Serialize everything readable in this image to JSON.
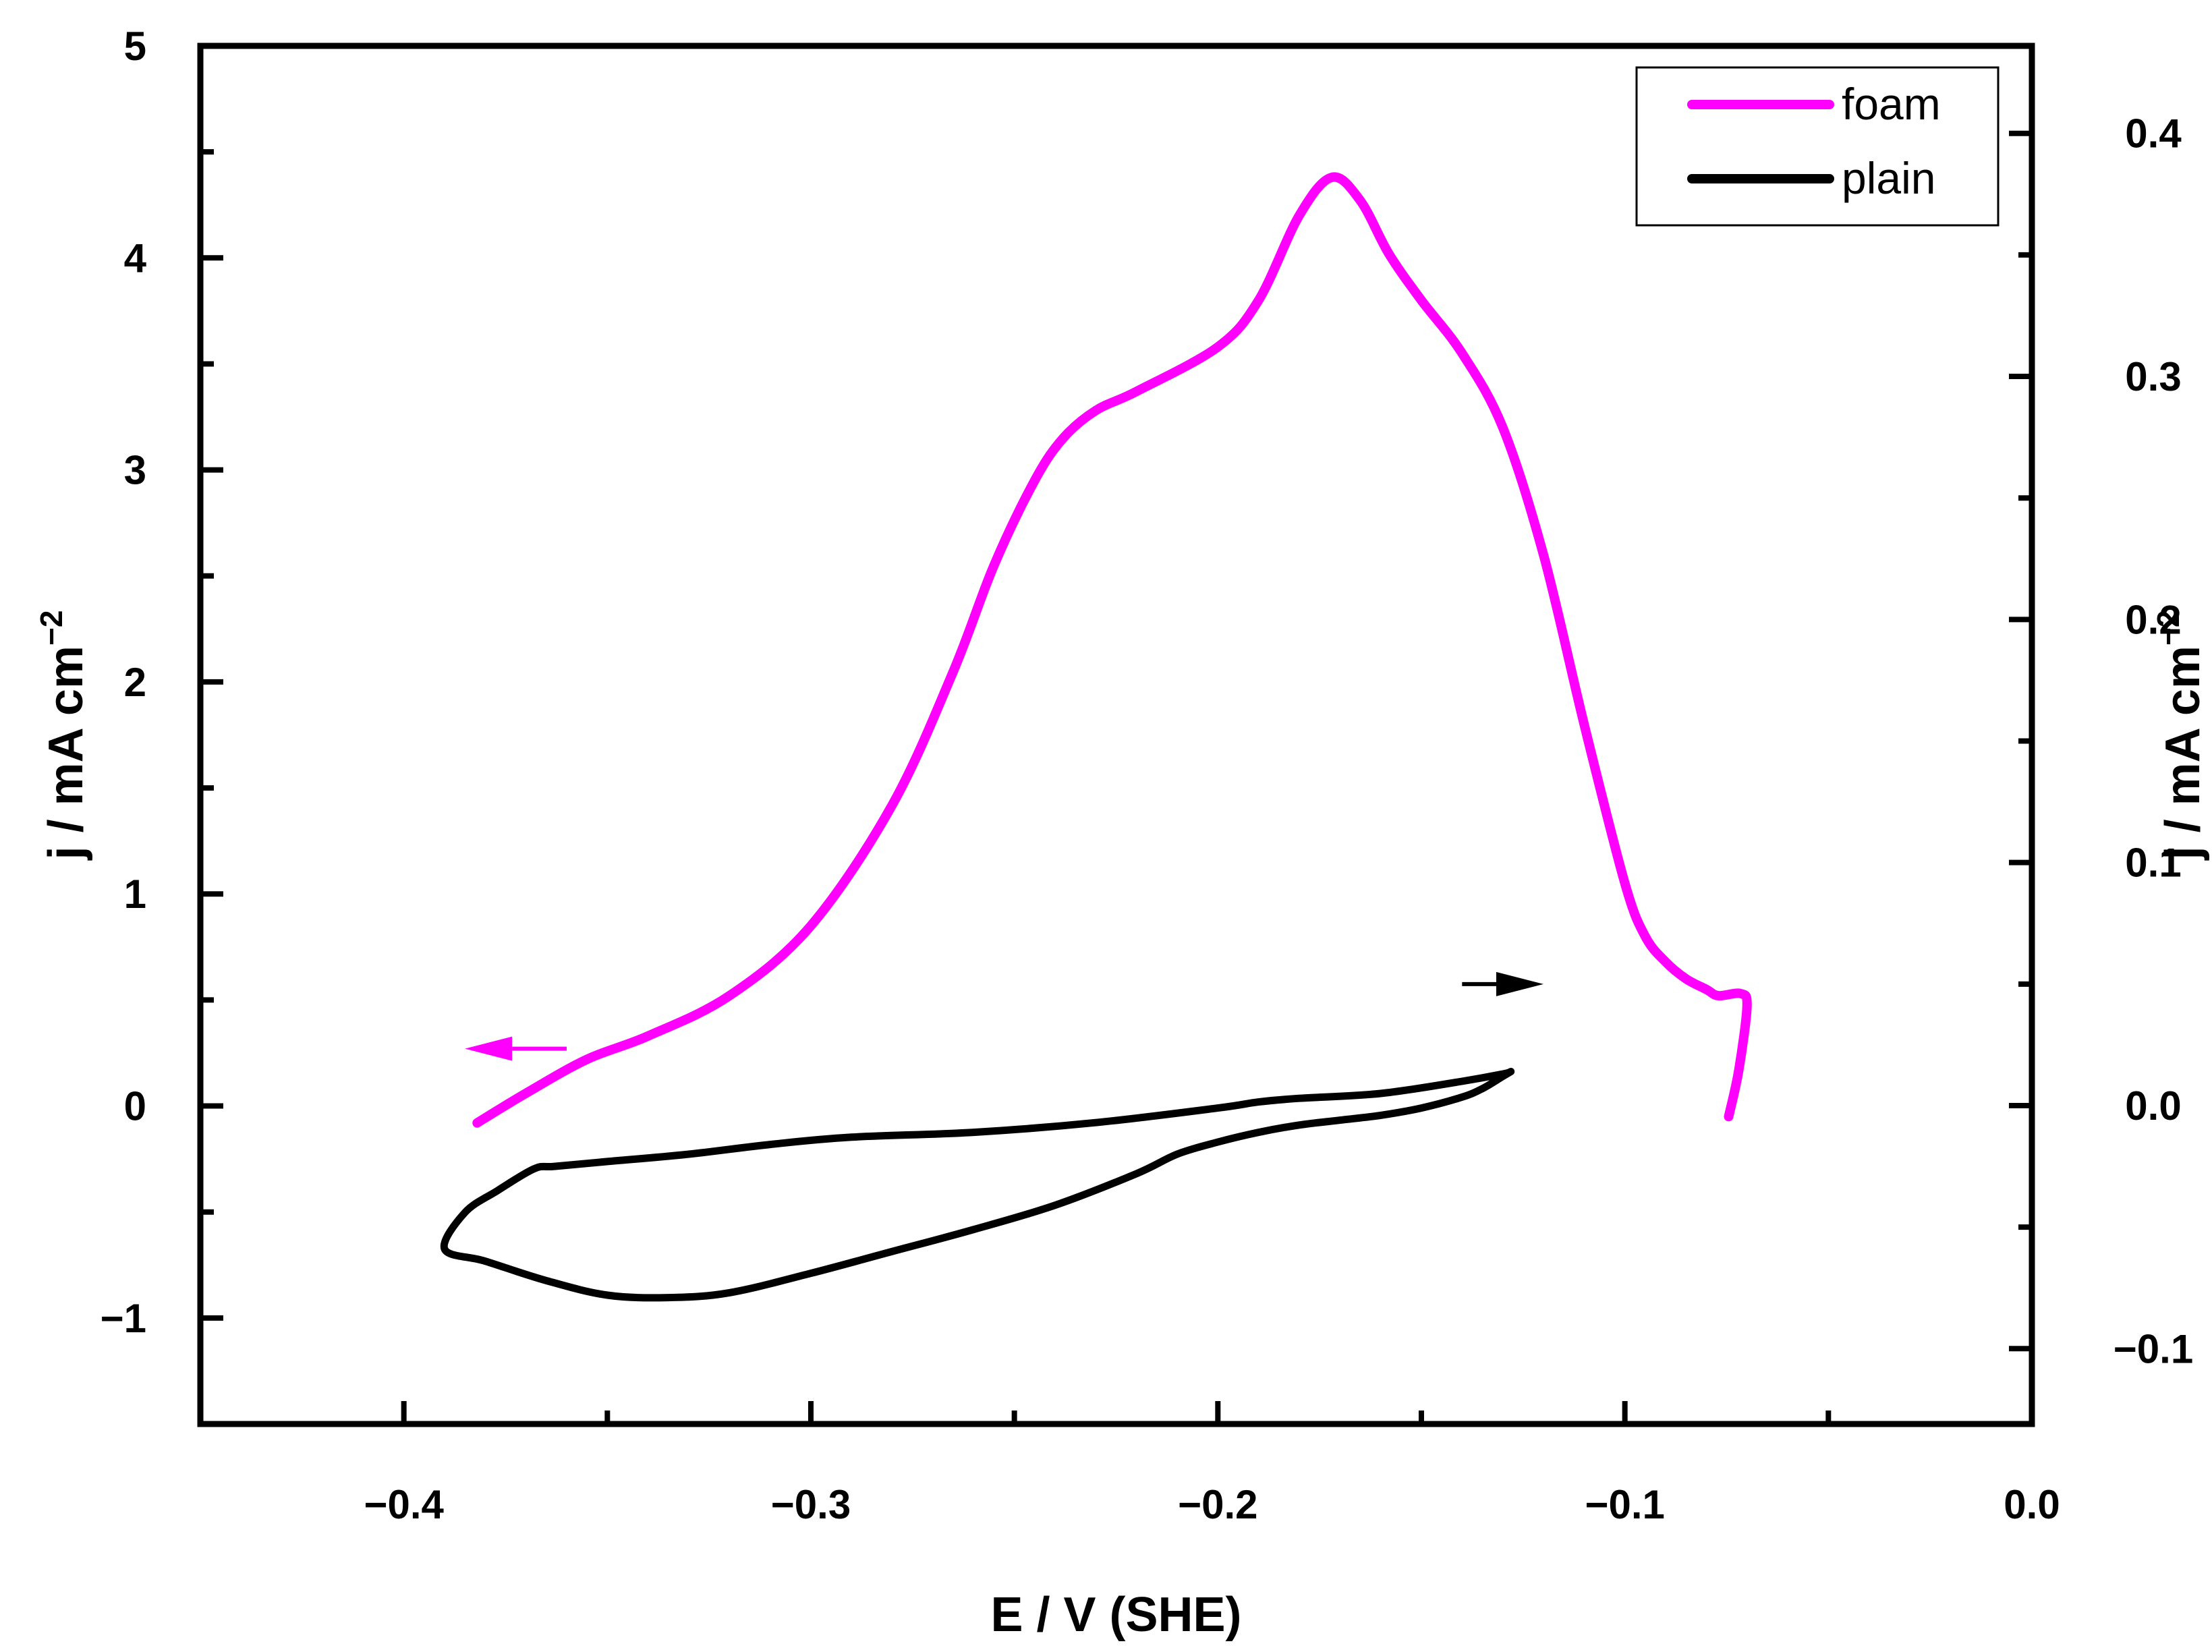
{
  "chart_data": {
    "type": "line",
    "title": "",
    "xlabel": "E / V (SHE)",
    "ylabel_left": "j / mA cm",
    "ylabel_left_sup": "−2",
    "ylabel_right": "j / mA cm",
    "ylabel_right_sup": "−2",
    "xlim": [
      -0.45,
      0.0
    ],
    "ylim_left": [
      -1.5,
      5.0
    ],
    "ylim_right": [
      -0.131,
      0.436
    ],
    "x_ticks": [
      {
        "value": -0.4,
        "label": "−0.4"
      },
      {
        "value": -0.3,
        "label": "−0.3"
      },
      {
        "value": -0.2,
        "label": "−0.2"
      },
      {
        "value": -0.1,
        "label": "−0.1"
      },
      {
        "value": 0.0,
        "label": "0.0"
      }
    ],
    "x_minor_ticks": [
      -0.35,
      -0.25,
      -0.15,
      -0.05
    ],
    "y_left_ticks": [
      {
        "value": -1,
        "label": "−1"
      },
      {
        "value": 0,
        "label": "0"
      },
      {
        "value": 1,
        "label": "1"
      },
      {
        "value": 2,
        "label": "2"
      },
      {
        "value": 3,
        "label": "3"
      },
      {
        "value": 4,
        "label": "4"
      },
      {
        "value": 5,
        "label": "5"
      }
    ],
    "y_left_minor_ticks": [
      -0.5,
      0.5,
      1.5,
      2.5,
      3.5,
      4.5
    ],
    "y_right_ticks": [
      {
        "value": -0.1,
        "label": "−0.1"
      },
      {
        "value": 0.0,
        "label": "0.0"
      },
      {
        "value": 0.1,
        "label": "0.1"
      },
      {
        "value": 0.2,
        "label": "0.2"
      },
      {
        "value": 0.3,
        "label": "0.3"
      },
      {
        "value": 0.4,
        "label": "0.4"
      }
    ],
    "y_right_minor_ticks": [
      -0.05,
      0.05,
      0.15,
      0.25,
      0.35
    ],
    "legend": {
      "position": "top-right",
      "entries": [
        {
          "name": "foam",
          "color": "#ff00ff"
        },
        {
          "name": "plain",
          "color": "#000000"
        }
      ]
    },
    "series": [
      {
        "name": "foam",
        "color": "#ff00ff",
        "axis": "left",
        "x": [
          -0.382,
          -0.37,
          -0.355,
          -0.34,
          -0.32,
          -0.3,
          -0.28,
          -0.265,
          -0.255,
          -0.245,
          -0.238,
          -0.23,
          -0.22,
          -0.2,
          -0.19,
          -0.18,
          -0.172,
          -0.165,
          -0.158,
          -0.15,
          -0.14,
          -0.13,
          -0.12,
          -0.11,
          -0.1,
          -0.095,
          -0.09,
          -0.085,
          -0.08,
          -0.077,
          -0.0715,
          -0.07,
          -0.072,
          -0.0745
        ],
        "y": [
          -0.08,
          0.06,
          0.22,
          0.33,
          0.52,
          0.85,
          1.42,
          2.05,
          2.55,
          2.95,
          3.15,
          3.28,
          3.37,
          3.58,
          3.8,
          4.2,
          4.38,
          4.27,
          4.02,
          3.8,
          3.55,
          3.2,
          2.6,
          1.8,
          1.05,
          0.8,
          0.68,
          0.6,
          0.55,
          0.52,
          0.53,
          0.47,
          0.17,
          -0.05
        ]
      },
      {
        "name": "plain",
        "color": "#000000",
        "axis": "right",
        "x": [
          -0.128,
          -0.13,
          -0.14,
          -0.16,
          -0.18,
          -0.19,
          -0.2,
          -0.23,
          -0.26,
          -0.29,
          -0.31,
          -0.33,
          -0.35,
          -0.363,
          -0.368,
          -0.377,
          -0.385,
          -0.39,
          -0.38,
          -0.365,
          -0.35,
          -0.335,
          -0.32,
          -0.3,
          -0.28,
          -0.26,
          -0.24,
          -0.22,
          -0.21,
          -0.2,
          -0.19,
          -0.18,
          -0.17,
          -0.16,
          -0.15,
          -0.14,
          -0.135,
          -0.13,
          -0.128
        ],
        "y": [
          0.014,
          0.013,
          0.01,
          0.005,
          0.003,
          0.0015,
          -0.001,
          -0.007,
          -0.011,
          -0.013,
          -0.016,
          -0.02,
          -0.023,
          -0.025,
          -0.026,
          -0.035,
          -0.044,
          -0.059,
          -0.064,
          -0.072,
          -0.078,
          -0.079,
          -0.077,
          -0.069,
          -0.06,
          -0.051,
          -0.041,
          -0.028,
          -0.02,
          -0.015,
          -0.011,
          -0.008,
          -0.006,
          -0.004,
          -0.001,
          0.0035,
          0.007,
          0.012,
          0.014
        ]
      }
    ],
    "annotations": [
      {
        "type": "arrow",
        "direction": "left",
        "color": "#ff00ff",
        "x_from": -0.36,
        "x_to": -0.385,
        "y": 0.27,
        "axis": "left"
      },
      {
        "type": "arrow",
        "direction": "right",
        "color": "#000000",
        "x_from": -0.14,
        "x_to": -0.12,
        "y": 0.05,
        "axis": "right"
      }
    ]
  }
}
